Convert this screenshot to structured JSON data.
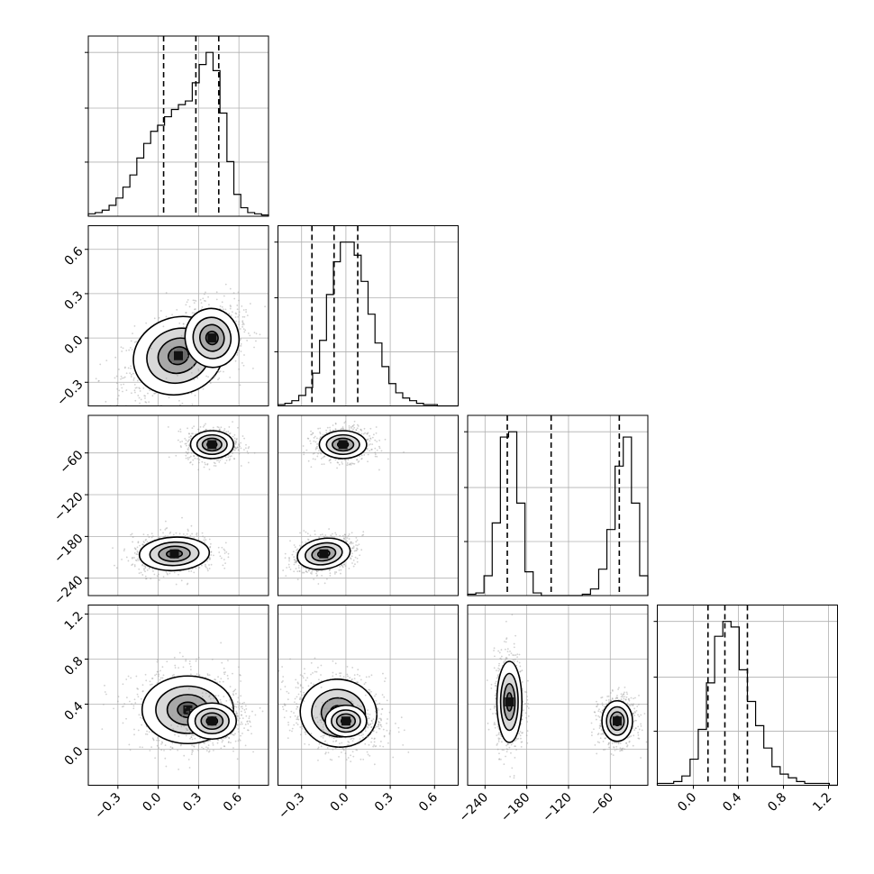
{
  "chart_data": {
    "type": "corner",
    "parameters": 4,
    "colors": {
      "ink": "#000000",
      "grid": "#b0b0b0",
      "scatter": "#9a9a9a"
    },
    "grid": true,
    "axes": [
      {
        "range": [
          -0.52,
          0.82
        ],
        "ticks": [
          -0.3,
          0.0,
          0.3,
          0.6
        ],
        "labels": [
          "−0.3",
          "0.0",
          "0.3",
          "0.6"
        ]
      },
      {
        "range": [
          -0.46,
          0.76
        ],
        "ticks": [
          -0.3,
          0.0,
          0.3,
          0.6
        ],
        "labels": [
          "−0.3",
          "0.0",
          "0.3",
          "0.6"
        ]
      },
      {
        "range": [
          -265,
          -6
        ],
        "ticks": [
          -240,
          -180,
          -120,
          -60
        ],
        "labels": [
          "−240",
          "−180",
          "−120",
          "−60"
        ]
      },
      {
        "range": [
          -0.32,
          1.28
        ],
        "ticks": [
          0.0,
          0.4,
          0.8,
          1.2
        ],
        "labels": [
          "0.0",
          "0.4",
          "0.8",
          "1.2"
        ]
      }
    ],
    "quantiles": [
      [
        0.04,
        0.28,
        0.45
      ],
      [
        -0.23,
        -0.08,
        0.08
      ],
      [
        -208,
        -145,
        -47
      ],
      [
        0.13,
        0.28,
        0.48
      ]
    ],
    "histograms": [
      {
        "bins": [
          -0.52,
          0.82
        ],
        "counts": [
          2,
          3,
          5,
          9,
          15,
          24,
          34,
          48,
          60,
          70,
          75,
          82,
          88,
          92,
          95,
          110,
          125,
          135,
          120,
          85,
          45,
          18,
          7,
          3,
          2,
          1
        ]
      },
      {
        "bins": [
          -0.46,
          0.76
        ],
        "counts": [
          1,
          2,
          4,
          8,
          14,
          25,
          50,
          85,
          110,
          125,
          125,
          115,
          95,
          70,
          48,
          30,
          17,
          10,
          6,
          4,
          2,
          1,
          1,
          0,
          0,
          0
        ]
      },
      {
        "bins": [
          -265,
          -6
        ],
        "counts": [
          1,
          2,
          15,
          55,
          120,
          124,
          70,
          18,
          2,
          0,
          0,
          0,
          0,
          0,
          1,
          5,
          20,
          50,
          98,
          120,
          70,
          15
        ]
      },
      {
        "bins": [
          -0.32,
          1.28
        ],
        "counts": [
          1,
          1,
          2,
          5,
          14,
          30,
          55,
          80,
          88,
          85,
          62,
          45,
          32,
          20,
          10,
          6,
          4,
          2,
          1,
          1,
          1,
          0
        ]
      }
    ],
    "scatter_clusters": [
      {
        "x": 0,
        "y": 1,
        "centers": [
          [
            0.15,
            -0.12,
            0.17,
            0.13,
            0.45,
            0.7
          ],
          [
            0.4,
            0.0,
            0.1,
            0.1,
            0.2,
            0.3
          ]
        ]
      },
      {
        "x": 0,
        "y": 2,
        "centers": [
          [
            0.4,
            -48,
            0.08,
            10,
            0,
            0.5
          ],
          [
            0.12,
            -205,
            0.13,
            12,
            0.1,
            0.5
          ]
        ]
      },
      {
        "x": 1,
        "y": 2,
        "centers": [
          [
            -0.02,
            -48,
            0.08,
            10,
            0,
            0.5
          ],
          [
            -0.15,
            -205,
            0.09,
            11,
            0.3,
            0.5
          ]
        ]
      },
      {
        "x": 0,
        "y": 3,
        "centers": [
          [
            0.22,
            0.35,
            0.17,
            0.15,
            0,
            0.6
          ],
          [
            0.4,
            0.25,
            0.09,
            0.08,
            0,
            0.4
          ]
        ]
      },
      {
        "x": 1,
        "y": 3,
        "centers": [
          [
            -0.05,
            0.32,
            0.13,
            0.15,
            -0.2,
            0.6
          ],
          [
            0.0,
            0.25,
            0.07,
            0.07,
            0,
            0.4
          ]
        ]
      },
      {
        "x": 2,
        "y": 3,
        "centers": [
          [
            -205,
            0.42,
            9,
            0.18,
            0,
            0.5
          ],
          [
            -50,
            0.25,
            11,
            0.09,
            0,
            0.5
          ]
        ]
      }
    ]
  }
}
